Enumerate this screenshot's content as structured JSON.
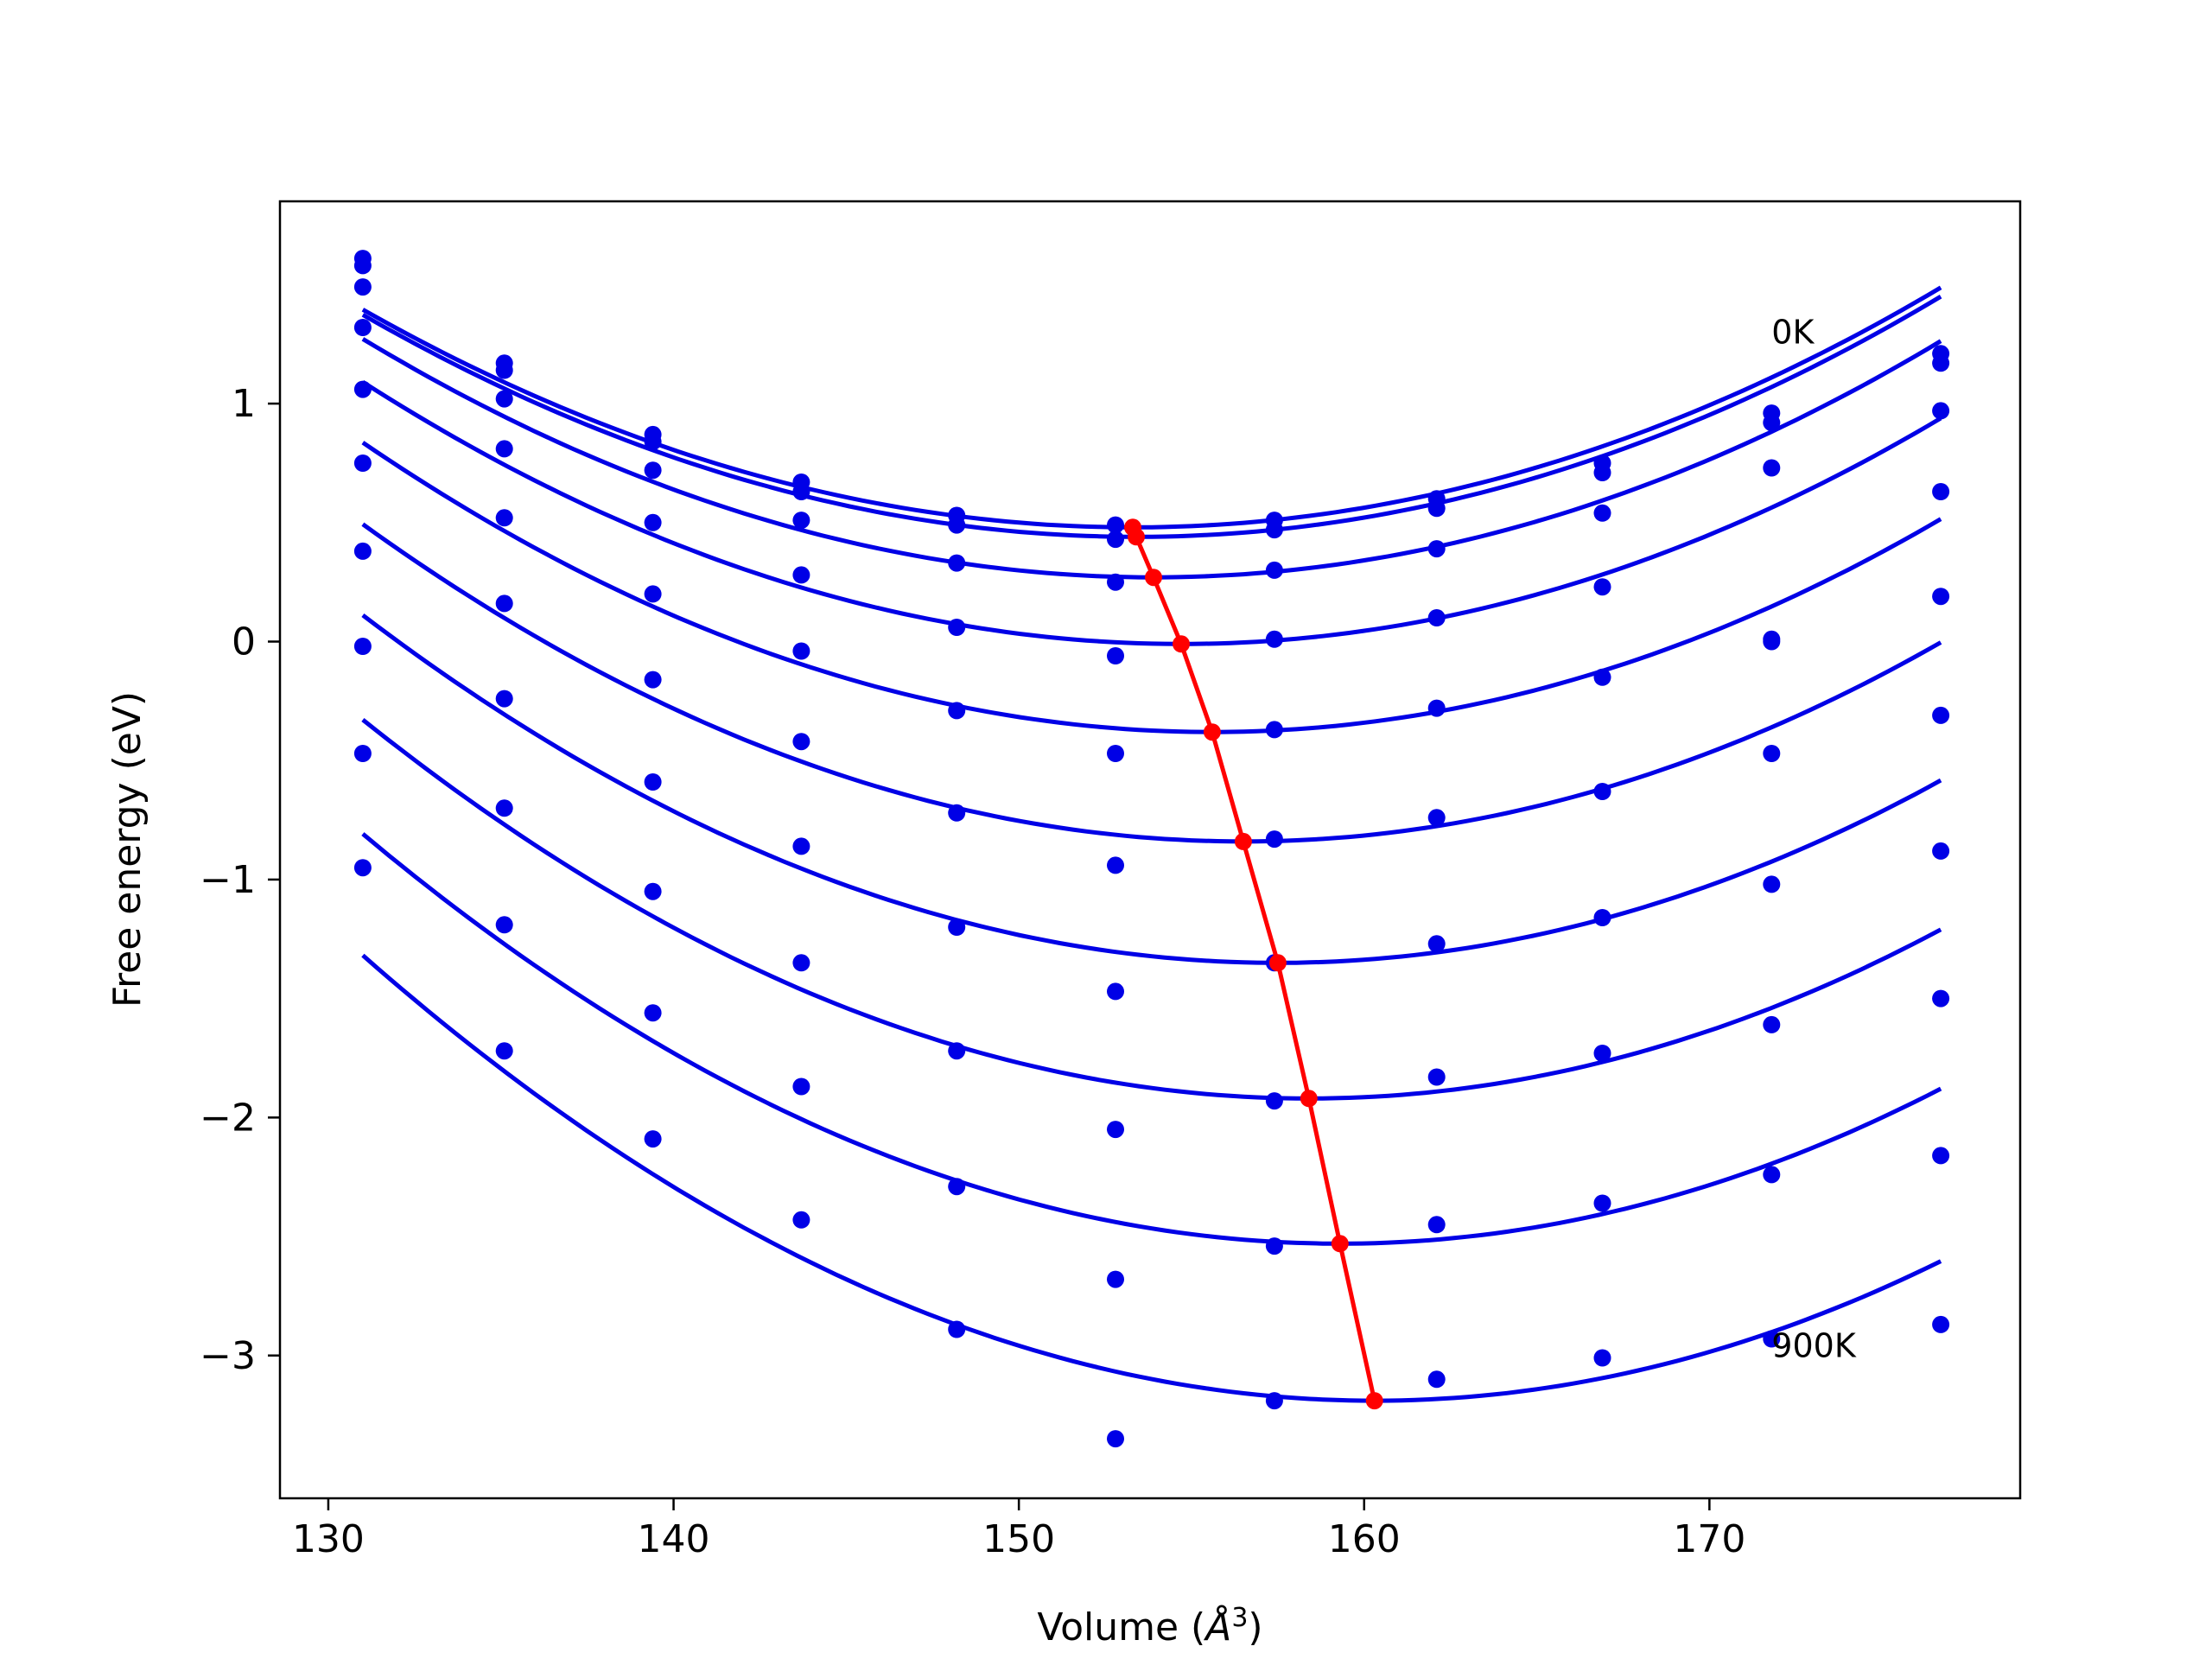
{
  "chart_data": {
    "type": "line",
    "title": "",
    "xlabel": "Volume (",
    "xlabel_symbol": "Å",
    "xlabel_exp": "3",
    "xlabel_close": ")",
    "ylabel": "Free energy (eV)",
    "xlim": [
      128.6,
      179.0
    ],
    "ylim": [
      -3.6,
      1.85
    ],
    "xticks": [
      130,
      140,
      150,
      160,
      170
    ],
    "yticks": [
      1,
      0,
      -1,
      -2,
      -3
    ],
    "xtick_labels": [
      "130",
      "140",
      "150",
      "160",
      "170"
    ],
    "ytick_labels": [
      "1",
      "0",
      "−1",
      "−2",
      "−3"
    ],
    "grid": false,
    "legend": "none",
    "annotations": [
      {
        "text": "0K",
        "x": 171.8,
        "y": 1.3
      },
      {
        "text": "900K",
        "x": 171.8,
        "y": -2.96
      }
    ],
    "colors": {
      "curves": "#0000e6",
      "minimum_line": "#ff0000"
    },
    "x_points": [
      131.0,
      135.1,
      139.4,
      143.7,
      148.2,
      152.8,
      157.4,
      162.1,
      166.9,
      171.8,
      176.7
    ],
    "series": [
      {
        "y_points": [
          1.61,
          1.17,
          0.87,
          0.67,
          0.53,
          0.49,
          0.51,
          0.6,
          0.75,
          0.96,
          1.21
        ]
      },
      {
        "y_points": [
          1.58,
          1.14,
          0.84,
          0.63,
          0.49,
          0.43,
          0.47,
          0.56,
          0.71,
          0.92,
          1.17
        ]
      },
      {
        "y_points": [
          1.49,
          1.02,
          0.72,
          0.51,
          0.33,
          0.25,
          0.3,
          0.39,
          0.54,
          0.73,
          0.97
        ]
      },
      {
        "y_points": [
          1.32,
          0.81,
          0.5,
          0.28,
          0.06,
          -0.06,
          0.01,
          0.1,
          0.23,
          0.0,
          0.63
        ]
      },
      {
        "y_points": [
          1.06,
          0.52,
          0.2,
          -0.04,
          -0.29,
          -0.47,
          -0.37,
          -0.28,
          -0.15,
          0.01,
          0.19
        ]
      },
      {
        "y_points": [
          0.75,
          0.16,
          -0.16,
          -0.42,
          -0.72,
          -0.94,
          -0.83,
          -0.74,
          -0.63,
          -0.47,
          -0.31
        ]
      },
      {
        "y_points": [
          0.38,
          -0.24,
          -0.59,
          -0.86,
          -1.2,
          -1.47,
          -1.35,
          -1.27,
          -1.16,
          -1.02,
          -0.88
        ]
      },
      {
        "y_points": [
          -0.02,
          -0.7,
          -1.05,
          -1.35,
          -1.72,
          -2.05,
          -1.93,
          -1.83,
          -1.73,
          -1.61,
          -1.5
        ]
      },
      {
        "y_points": [
          -0.47,
          -1.19,
          -1.56,
          -1.87,
          -2.29,
          -2.68,
          -2.54,
          -2.45,
          -2.36,
          -2.24,
          -2.16
        ]
      },
      {
        "y_points": [
          -0.95,
          -1.72,
          -2.09,
          -2.43,
          -2.89,
          -3.35,
          -3.19,
          -3.1,
          -3.01,
          -2.93,
          -2.87
        ]
      }
    ],
    "fit_curves": [
      {
        "v0": 153.3,
        "e0": 0.48,
        "k": 0.00184
      },
      {
        "v0": 153.4,
        "e0": 0.44,
        "k": 0.00186
      },
      {
        "v0": 153.9,
        "e0": 0.27,
        "k": 0.00191
      },
      {
        "v0": 154.7,
        "e0": -0.01,
        "k": 0.00196
      },
      {
        "v0": 155.6,
        "e0": -0.38,
        "k": 0.00201
      },
      {
        "v0": 156.5,
        "e0": -0.84,
        "k": 0.00205
      },
      {
        "v0": 157.5,
        "e0": -1.35,
        "k": 0.00208
      },
      {
        "v0": 158.4,
        "e0": -1.92,
        "k": 0.00212
      },
      {
        "v0": 159.3,
        "e0": -2.53,
        "k": 0.00215
      },
      {
        "v0": 160.3,
        "e0": -3.19,
        "k": 0.00218
      }
    ],
    "minimum_line": {
      "x": [
        153.3,
        153.4,
        153.9,
        154.7,
        155.6,
        156.5,
        157.5,
        158.4,
        159.3,
        160.3
      ],
      "y": [
        0.48,
        0.44,
        0.27,
        -0.01,
        -0.38,
        -0.84,
        -1.35,
        -1.92,
        -2.53,
        -3.19
      ]
    }
  }
}
